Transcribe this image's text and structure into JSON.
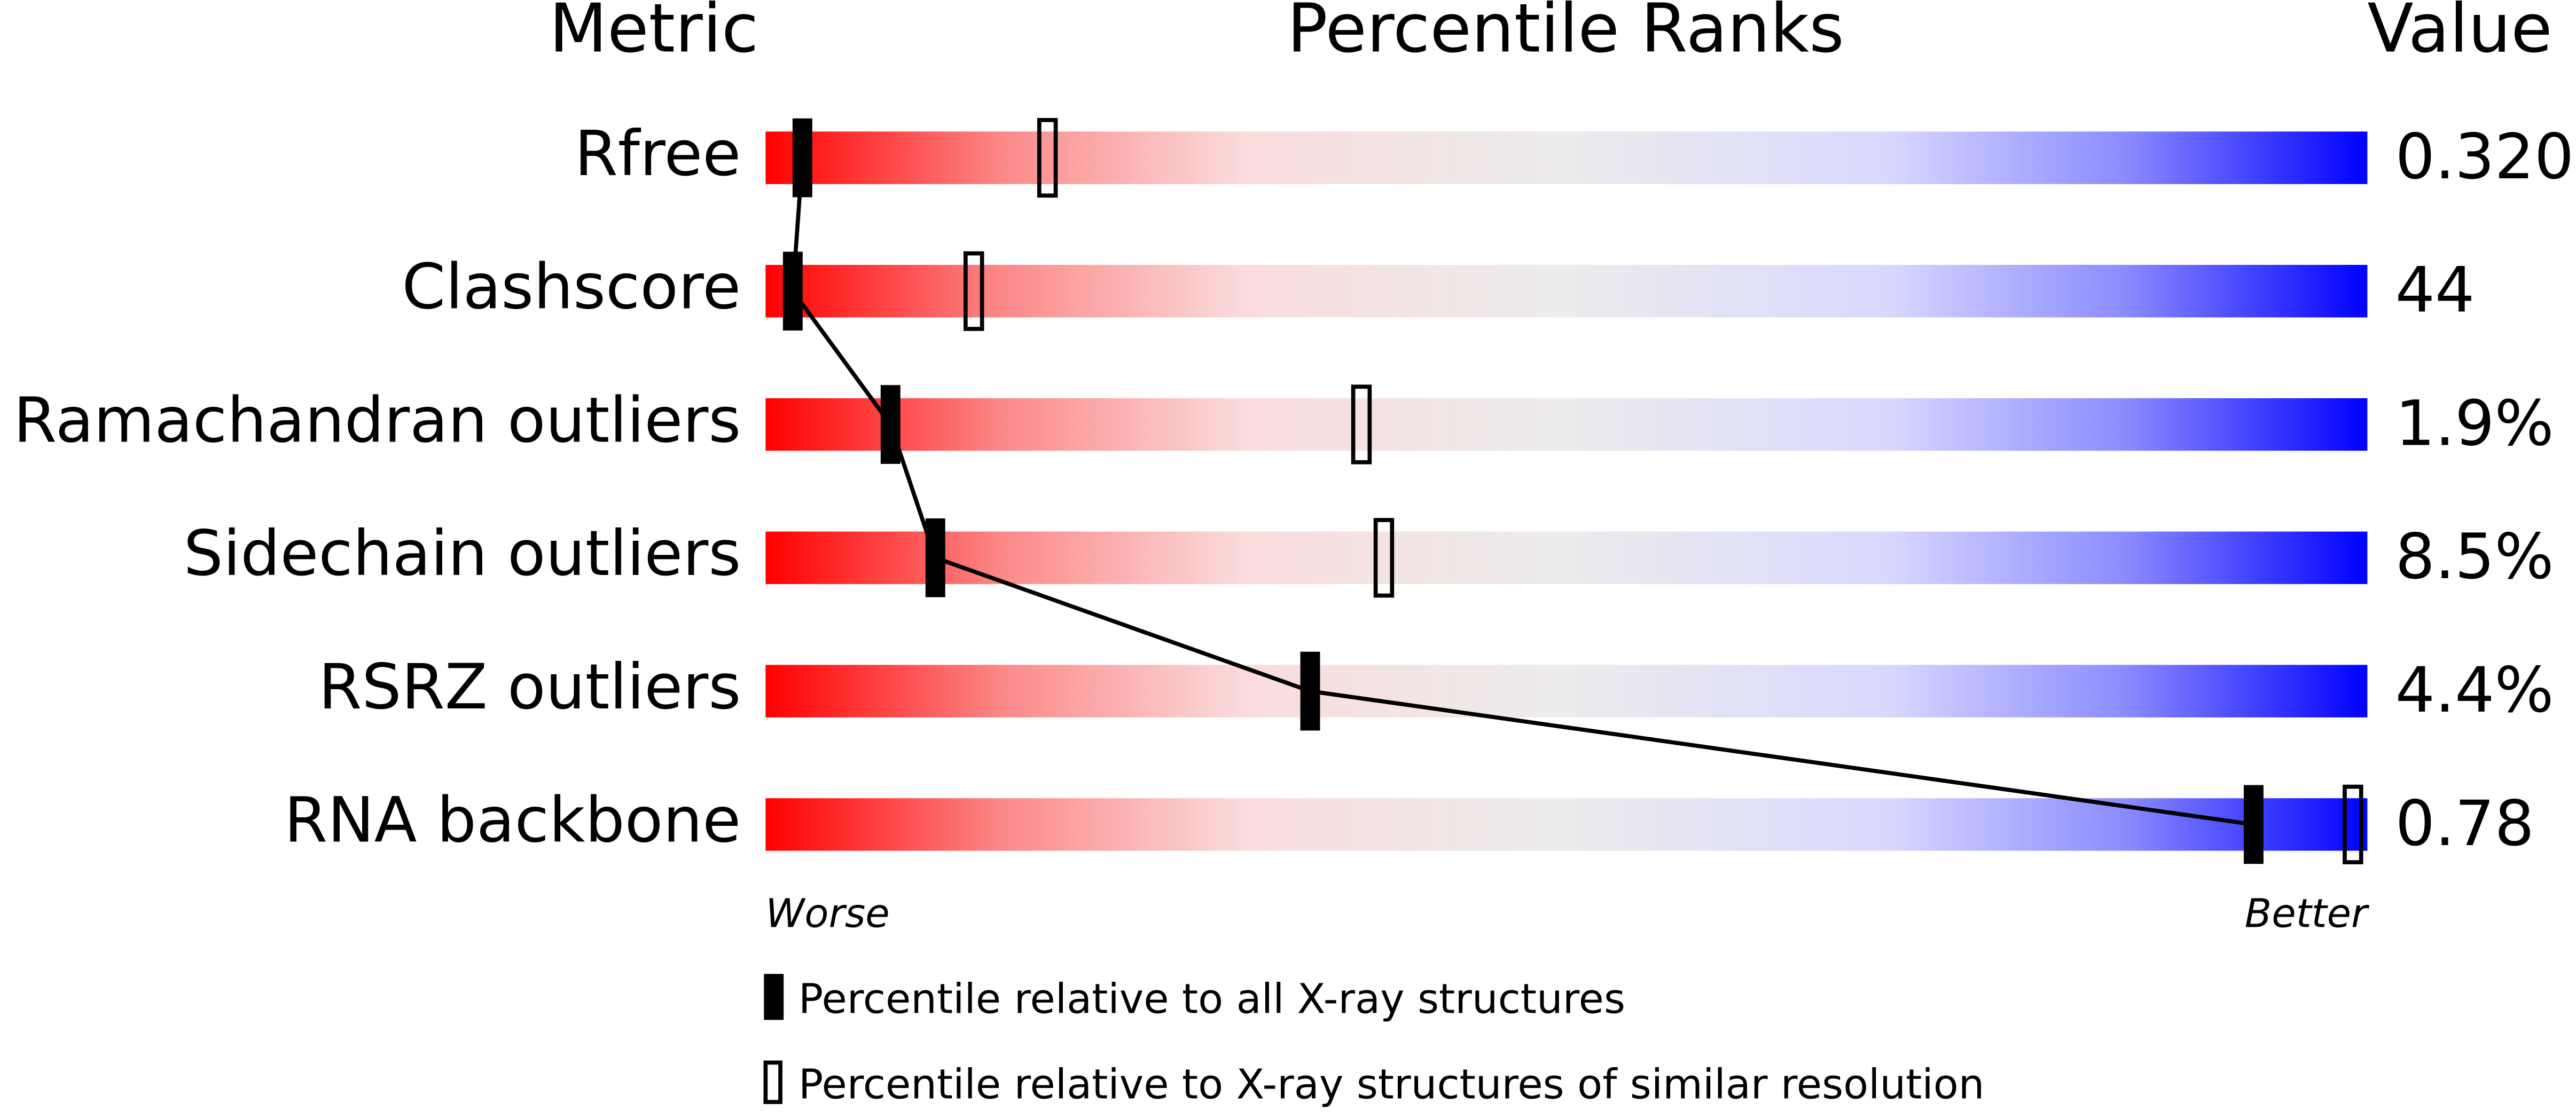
{
  "chart_data": {
    "type": "percentile",
    "headers": {
      "metric": "Metric",
      "ranks": "Percentile Ranks",
      "value": "Value"
    },
    "categories": [
      "Rfree",
      "Clashscore",
      "Ramachandran outliers",
      "Sidechain outliers",
      "RSRZ outliers",
      "RNA backbone"
    ],
    "metric_values": [
      "0.320",
      "44",
      "1.9%",
      "8.5%",
      "4.4%",
      "0.78"
    ],
    "series": [
      {
        "name": "Percentile relative to all X-ray structures",
        "values": [
          2.3,
          1.7,
          7.8,
          10.6,
          34,
          92.9
        ]
      },
      {
        "name": "Percentile relative to X-ray structures of similar resolution",
        "values": [
          17.6,
          13,
          37.2,
          38.6,
          null,
          99.1
        ]
      }
    ],
    "xlim": [
      0,
      100
    ],
    "worse_label": "Worse",
    "better_label": "Better"
  }
}
